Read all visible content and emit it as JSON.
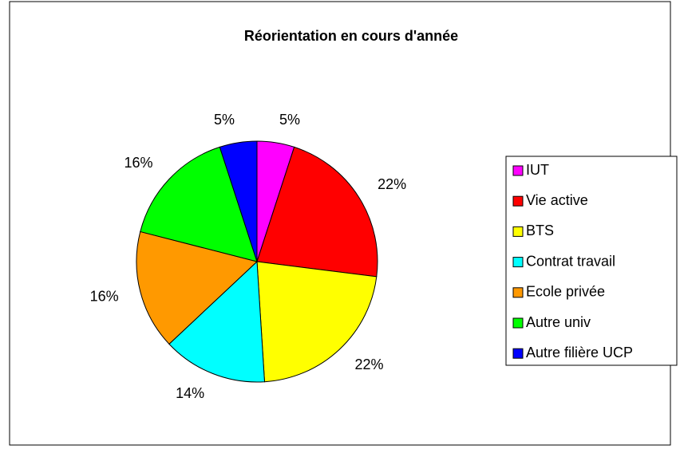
{
  "chart_data": {
    "type": "pie",
    "title": "Réorientation en cours d'année",
    "categories": [
      "IUT",
      "Vie active",
      "BTS",
      "Contrat travail",
      "Ecole privée",
      "Autre univ",
      "Autre filière UCP"
    ],
    "values": [
      5,
      22,
      22,
      14,
      16,
      16,
      5
    ],
    "value_labels": [
      "5%",
      "22%",
      "22%",
      "14%",
      "16%",
      "16%",
      "5%"
    ],
    "colors": [
      "#ff00ff",
      "#ff0000",
      "#ffff00",
      "#00ffff",
      "#ff9900",
      "#00ff00",
      "#0000ff"
    ],
    "legend": "right"
  }
}
